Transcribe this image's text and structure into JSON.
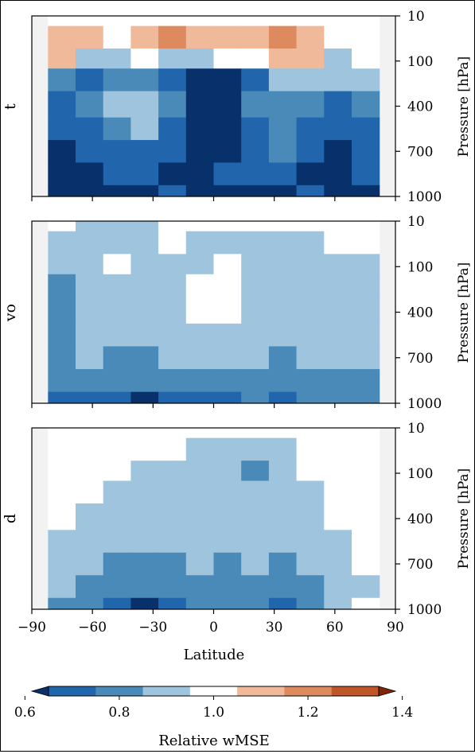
{
  "chart_data": {
    "type": "heatmap",
    "colorbar": {
      "label": "Relative wMSE",
      "ticks": [
        "0.6",
        "0.8",
        "1.0",
        "1.2",
        "1.4"
      ],
      "levels": [
        0.55,
        0.65,
        0.75,
        0.85,
        0.95,
        1.05,
        1.15,
        1.25,
        1.35,
        1.45
      ],
      "colors": [
        "#08306b",
        "#2166ac",
        "#4a8ab8",
        "#9ec5dd",
        "#ffffff",
        "#f0b99a",
        "#dd8a5f",
        "#c0552a",
        "#7f2704"
      ]
    },
    "x_axis": {
      "label": "Latitude",
      "ticks": [
        "−90",
        "−60",
        "−30",
        "0",
        "30",
        "60",
        "90"
      ],
      "tick_values": [
        -90,
        -60,
        -30,
        0,
        30,
        60,
        90
      ],
      "xlim": [
        -90,
        90
      ],
      "masked_lat": [
        [
          -90,
          -82
        ],
        [
          82,
          90
        ]
      ]
    },
    "y_axis": {
      "label": "Pressure [hPa]",
      "ticks": [
        "10",
        "100",
        "400",
        "700",
        "1000"
      ],
      "tick_values": [
        10,
        100,
        400,
        700,
        1000
      ],
      "ylim": [
        1000,
        10
      ]
    },
    "panels": [
      {
        "name": "t",
        "rows": [
          {
            "level": 10,
            "values": [
              1.0,
              1.0,
              1.0,
              1.0,
              1.0,
              1.0,
              1.0,
              1.0,
              1.0,
              1.0,
              1.0,
              1.0
            ]
          },
          {
            "level": 50,
            "values": [
              1.1,
              1.1,
              1.0,
              1.1,
              1.2,
              1.1,
              1.1,
              1.1,
              1.2,
              1.1,
              1.0,
              1.0
            ]
          },
          {
            "level": 100,
            "values": [
              1.1,
              0.9,
              0.9,
              1.0,
              0.9,
              0.9,
              1.0,
              1.0,
              1.1,
              1.1,
              0.9,
              1.0
            ]
          },
          {
            "level": 200,
            "values": [
              0.8,
              0.7,
              0.8,
              0.8,
              0.7,
              0.6,
              0.6,
              0.7,
              0.9,
              0.9,
              0.9,
              0.9
            ]
          },
          {
            "level": 400,
            "values": [
              0.7,
              0.8,
              0.9,
              0.9,
              0.8,
              0.6,
              0.6,
              0.8,
              0.8,
              0.8,
              0.7,
              0.8
            ]
          },
          {
            "level": 550,
            "values": [
              0.7,
              0.7,
              0.8,
              0.9,
              0.7,
              0.6,
              0.6,
              0.7,
              0.8,
              0.7,
              0.7,
              0.7
            ]
          },
          {
            "level": 700,
            "values": [
              0.6,
              0.7,
              0.7,
              0.7,
              0.7,
              0.6,
              0.6,
              0.7,
              0.8,
              0.7,
              0.6,
              0.7
            ]
          },
          {
            "level": 850,
            "values": [
              0.6,
              0.6,
              0.7,
              0.7,
              0.6,
              0.6,
              0.7,
              0.7,
              0.7,
              0.6,
              0.6,
              0.7
            ]
          },
          {
            "level": 1000,
            "values": [
              0.6,
              0.6,
              0.6,
              0.6,
              0.7,
              0.6,
              0.6,
              0.6,
              0.6,
              0.7,
              0.6,
              0.6
            ]
          }
        ]
      },
      {
        "name": "vo",
        "rows": [
          {
            "level": 10,
            "values": [
              1.0,
              0.9,
              0.9,
              0.9,
              1.0,
              1.0,
              1.0,
              1.0,
              1.0,
              1.0,
              1.0,
              1.0
            ]
          },
          {
            "level": 50,
            "values": [
              0.9,
              0.9,
              0.9,
              0.9,
              1.0,
              0.9,
              0.9,
              0.9,
              0.9,
              0.9,
              1.0,
              1.0
            ]
          },
          {
            "level": 100,
            "values": [
              0.9,
              0.9,
              1.0,
              0.9,
              0.9,
              0.9,
              1.0,
              0.9,
              0.9,
              0.9,
              0.9,
              0.9
            ]
          },
          {
            "level": 200,
            "values": [
              0.8,
              0.9,
              0.9,
              0.9,
              0.9,
              1.0,
              1.0,
              0.9,
              0.9,
              0.9,
              0.9,
              0.9
            ]
          },
          {
            "level": 400,
            "values": [
              0.8,
              0.9,
              0.9,
              0.9,
              0.9,
              1.0,
              1.0,
              0.9,
              0.9,
              0.9,
              0.9,
              0.9
            ]
          },
          {
            "level": 550,
            "values": [
              0.8,
              0.9,
              0.9,
              0.9,
              0.9,
              0.9,
              0.9,
              0.9,
              0.9,
              0.9,
              0.9,
              0.9
            ]
          },
          {
            "level": 700,
            "values": [
              0.8,
              0.9,
              0.8,
              0.8,
              0.9,
              0.9,
              0.9,
              0.9,
              0.8,
              0.9,
              0.9,
              0.9
            ]
          },
          {
            "level": 850,
            "values": [
              0.8,
              0.8,
              0.8,
              0.8,
              0.8,
              0.8,
              0.8,
              0.8,
              0.8,
              0.8,
              0.8,
              0.8
            ]
          },
          {
            "level": 1000,
            "values": [
              0.7,
              0.7,
              0.7,
              0.6,
              0.7,
              0.7,
              0.7,
              0.8,
              0.7,
              0.8,
              0.8,
              0.8
            ]
          }
        ]
      },
      {
        "name": "d",
        "rows": [
          {
            "level": 10,
            "values": [
              1.0,
              1.0,
              1.0,
              1.0,
              1.0,
              1.0,
              1.0,
              1.0,
              1.0,
              1.0,
              1.0,
              1.0
            ]
          },
          {
            "level": 50,
            "values": [
              1.0,
              1.0,
              1.0,
              1.0,
              1.0,
              0.9,
              0.9,
              0.9,
              0.9,
              1.0,
              1.0,
              1.0
            ]
          },
          {
            "level": 100,
            "values": [
              1.0,
              1.0,
              1.0,
              0.9,
              0.9,
              0.9,
              0.9,
              0.8,
              0.9,
              1.0,
              1.0,
              1.0
            ]
          },
          {
            "level": 200,
            "values": [
              1.0,
              1.0,
              0.9,
              0.9,
              0.9,
              0.9,
              0.9,
              0.9,
              0.9,
              0.9,
              1.0,
              1.0
            ]
          },
          {
            "level": 400,
            "values": [
              1.0,
              0.9,
              0.9,
              0.9,
              0.9,
              0.9,
              0.9,
              0.9,
              0.9,
              0.9,
              1.0,
              1.0
            ]
          },
          {
            "level": 550,
            "values": [
              0.9,
              0.9,
              0.9,
              0.9,
              0.9,
              0.9,
              0.9,
              0.9,
              0.9,
              0.9,
              0.9,
              1.0
            ]
          },
          {
            "level": 700,
            "values": [
              0.9,
              0.9,
              0.8,
              0.8,
              0.8,
              0.9,
              0.8,
              0.9,
              0.8,
              0.9,
              0.9,
              1.0
            ]
          },
          {
            "level": 850,
            "values": [
              0.9,
              0.8,
              0.8,
              0.8,
              0.8,
              0.8,
              0.8,
              0.8,
              0.8,
              0.8,
              0.9,
              0.9
            ]
          },
          {
            "level": 1000,
            "values": [
              0.8,
              0.8,
              0.7,
              0.6,
              0.7,
              0.8,
              0.8,
              0.8,
              0.7,
              0.8,
              0.9,
              1.0
            ]
          }
        ]
      }
    ]
  }
}
